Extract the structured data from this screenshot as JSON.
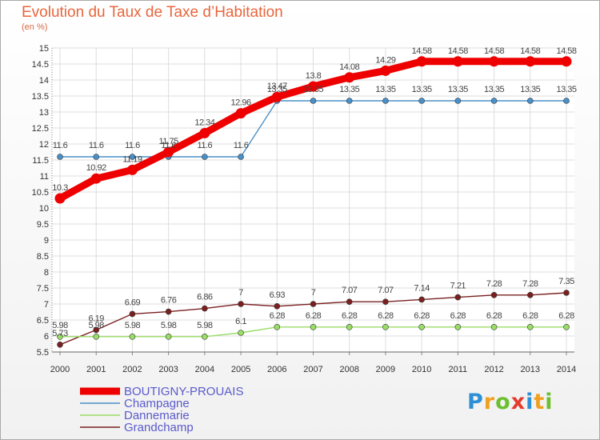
{
  "header": {
    "title": "Evolution du Taux de Taxe d’Habitation",
    "unit": "(en %)"
  },
  "logo": {
    "letters": [
      "P",
      "r",
      "o",
      "x",
      "i",
      "t",
      "i"
    ],
    "colors": [
      "#2d8fd5",
      "#f0a020",
      "#6cbf2e",
      "#e33b2e",
      "#2d8fd5",
      "#f0a020",
      "#6cbf2e"
    ]
  },
  "chart_data": {
    "type": "line",
    "x": [
      2000,
      2001,
      2002,
      2003,
      2004,
      2005,
      2006,
      2007,
      2008,
      2009,
      2010,
      2011,
      2012,
      2013,
      2014
    ],
    "ylim": [
      5.5,
      15
    ],
    "yticks": [
      5.5,
      6,
      6.5,
      7,
      7.5,
      8,
      8.5,
      9,
      9.5,
      10,
      10.5,
      11,
      11.5,
      12,
      12.5,
      13,
      13.5,
      14,
      14.5,
      15
    ],
    "ylabel": "(en %)",
    "legend_position": "bottom-left",
    "series": [
      {
        "name": "BOUTIGNY-PROUAIS",
        "color": "#ee0000",
        "values": [
          10.3,
          10.92,
          11.19,
          11.75,
          12.34,
          12.96,
          13.47,
          13.8,
          14.08,
          14.29,
          14.58,
          14.58,
          14.58,
          14.58,
          14.58
        ],
        "labels": [
          "10.3",
          "10.92",
          "11.19",
          "11.75",
          "12.34",
          "12.96",
          "13.47",
          "13.8",
          "14.08",
          "14.29",
          "14.58",
          "14.58",
          "14.58",
          "14.58",
          "14.58"
        ]
      },
      {
        "name": "Champagne",
        "color": "#4a90c8",
        "values": [
          11.6,
          11.6,
          11.6,
          11.6,
          11.6,
          11.6,
          13.35,
          13.35,
          13.35,
          13.35,
          13.35,
          13.35,
          13.35,
          13.35,
          13.35
        ],
        "labels": [
          "11.6",
          "11.6",
          "11.6",
          "11.6",
          "11.6",
          "11.6",
          "13.35",
          "13.35",
          "13.35",
          "13.35",
          "13.35",
          "13.35",
          "13.35",
          "13.35",
          "13.35"
        ]
      },
      {
        "name": "Dannemarie",
        "color": "#99dd66",
        "values": [
          5.98,
          5.98,
          5.98,
          5.98,
          5.98,
          6.1,
          6.28,
          6.28,
          6.28,
          6.28,
          6.28,
          6.28,
          6.28,
          6.28,
          6.28
        ],
        "labels": [
          "5.98",
          "5.98",
          "5.98",
          "5.98",
          "5.98",
          "6.1",
          "6.28",
          "6.28",
          "6.28",
          "6.28",
          "6.28",
          "6.28",
          "6.28",
          "6.28",
          "6.28"
        ]
      },
      {
        "name": "Grandchamp",
        "color": "#7a2020",
        "values": [
          5.73,
          6.19,
          6.69,
          6.76,
          6.86,
          7,
          6.93,
          7,
          7.07,
          7.07,
          7.14,
          7.21,
          7.28,
          7.28,
          7.35
        ],
        "labels": [
          "5.73",
          "6.19",
          "6.69",
          "6.76",
          "6.86",
          "7",
          "6.93",
          "7",
          "7.07",
          "7.07",
          "7.14",
          "7.21",
          "7.28",
          "7.28",
          "7.35"
        ]
      }
    ]
  }
}
